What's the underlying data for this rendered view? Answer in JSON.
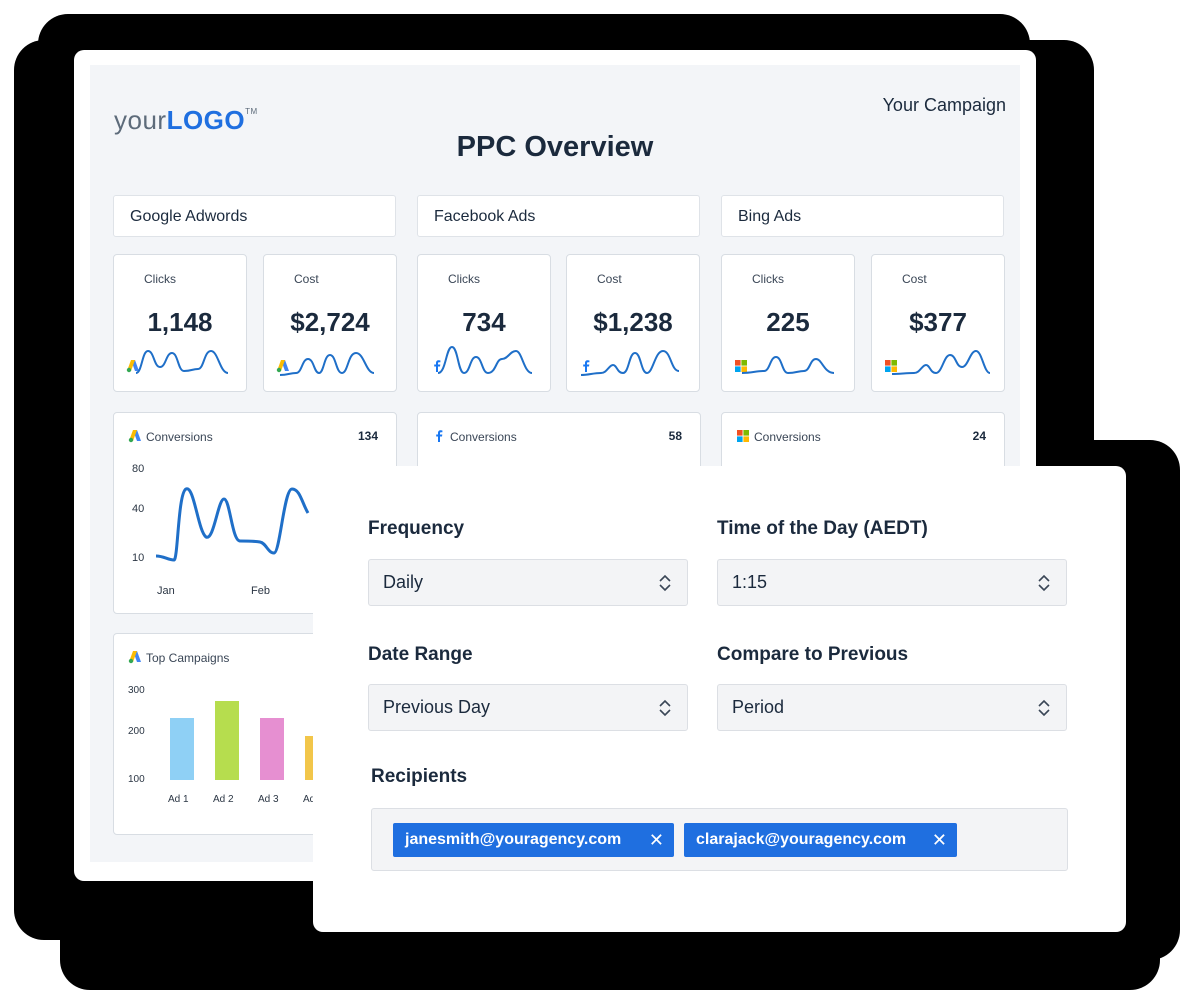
{
  "report": {
    "logo": {
      "prefix": "your",
      "brand": "LOGO",
      "tm": "TM"
    },
    "campaign": "Your Campaign",
    "title": "PPC Overview",
    "platforms": [
      {
        "name": "Google Adwords",
        "icon": "google-ads-icon"
      },
      {
        "name": "Facebook Ads",
        "icon": "facebook-icon"
      },
      {
        "name": "Bing Ads",
        "icon": "microsoft-icon"
      }
    ],
    "kpis": [
      {
        "label": "Clicks",
        "value": "1,148",
        "icon": "google-ads-icon"
      },
      {
        "label": "Cost",
        "value": "$2,724",
        "icon": "google-ads-icon"
      },
      {
        "label": "Clicks",
        "value": "734",
        "icon": "facebook-icon"
      },
      {
        "label": "Cost",
        "value": "$1,238",
        "icon": "facebook-icon"
      },
      {
        "label": "Clicks",
        "value": "225",
        "icon": "microsoft-icon"
      },
      {
        "label": "Cost",
        "value": "$377",
        "icon": "microsoft-icon"
      }
    ],
    "conversions": [
      {
        "label": "Conversions",
        "count": "134",
        "icon": "google-ads-icon"
      },
      {
        "label": "Conversions",
        "count": "58",
        "icon": "facebook-icon"
      },
      {
        "label": "Conversions",
        "count": "24",
        "icon": "microsoft-icon"
      }
    ],
    "conversion_chart": {
      "y_ticks": [
        "80",
        "40",
        "10"
      ],
      "x_ticks": [
        "Jan",
        "Feb"
      ]
    },
    "top_campaigns": {
      "label": "Top Campaigns",
      "y_ticks": [
        "300",
        "200",
        "100"
      ],
      "bars": [
        {
          "name": "Ad 1",
          "value": 240,
          "color": "#8fd0f5"
        },
        {
          "name": "Ad 2",
          "value": 280,
          "color": "#b6dd4e"
        },
        {
          "name": "Ad 3",
          "value": 240,
          "color": "#e68fd1"
        },
        {
          "name": "Ad",
          "value": 200,
          "color": "#f2c64a"
        }
      ]
    }
  },
  "settings": {
    "frequency": {
      "label": "Frequency",
      "value": "Daily"
    },
    "time_of_day": {
      "label": "Time of the Day (AEDT)",
      "value": "1:15"
    },
    "date_range": {
      "label": "Date Range",
      "value": "Previous Day"
    },
    "compare": {
      "label": "Compare to Previous",
      "value": "Period"
    },
    "recipients": {
      "label": "Recipients",
      "emails": [
        "janesmith@youragency.com",
        "clarajack@youragency.com"
      ],
      "remove_glyph": "✕"
    }
  },
  "colors": {
    "accent": "#1f6fe0",
    "line": "#1f6fc8",
    "card_bg": "#f3f5f8"
  }
}
